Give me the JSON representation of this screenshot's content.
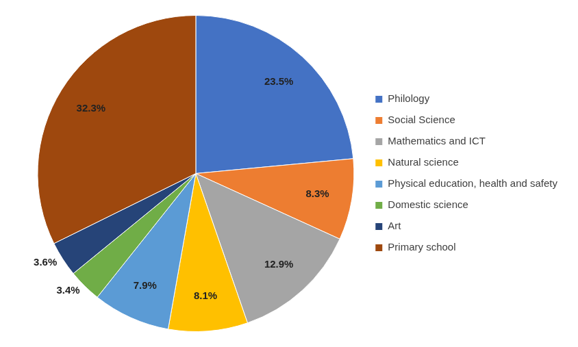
{
  "chart_data": {
    "type": "pie",
    "categories": [
      "Philology",
      "Social Science",
      "Mathematics and ICT",
      "Natural science",
      "Physical education, health and safety",
      "Domestic science",
      "Art",
      "Primary school"
    ],
    "values": [
      23.5,
      8.3,
      12.9,
      8.1,
      7.9,
      3.4,
      3.6,
      32.3
    ],
    "value_labels": [
      "23.5%",
      "8.3%",
      "12.9%",
      "8.1%",
      "7.9%",
      "3.4%",
      "3.6%",
      "32.3%"
    ],
    "colors": [
      "#4472c4",
      "#ed7d31",
      "#a5a5a5",
      "#ffc000",
      "#5b9bd5",
      "#70ad47",
      "#264478",
      "#9e480e"
    ],
    "legend": "right",
    "data_labels": true
  }
}
